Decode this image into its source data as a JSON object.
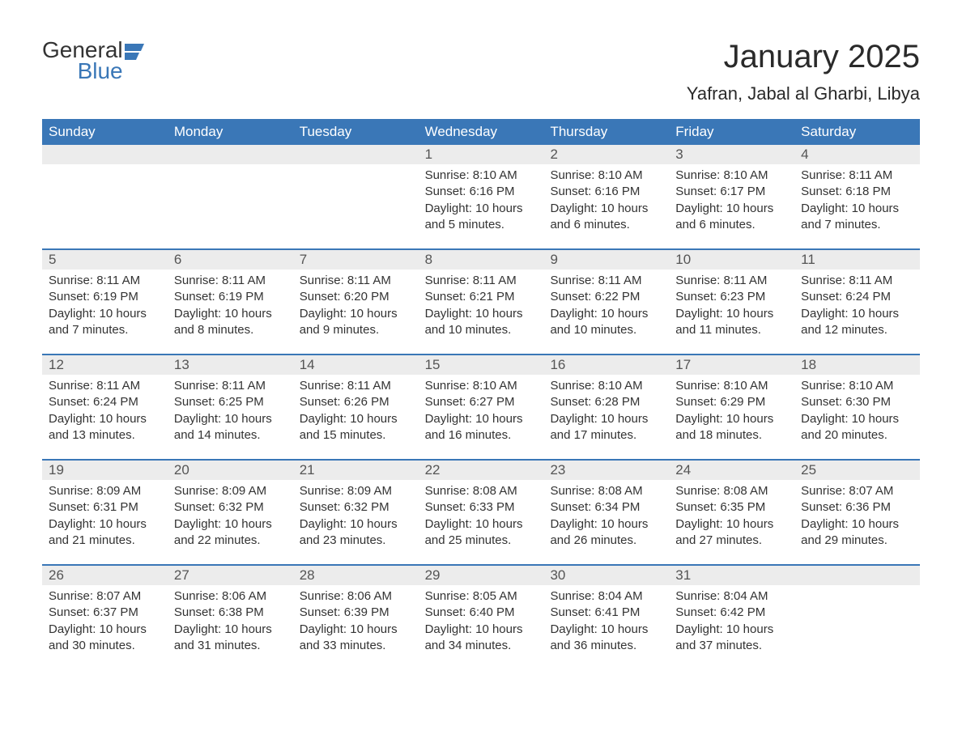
{
  "logo": {
    "word1": "General",
    "word2": "Blue"
  },
  "title": "January 2025",
  "location": "Yafran, Jabal al Gharbi, Libya",
  "colors": {
    "header_bg": "#3a77b7",
    "header_text": "#ffffff",
    "daynum_bg": "#ececec",
    "week_border": "#3a77b7",
    "body_text": "#333333",
    "page_bg": "#ffffff"
  },
  "typography": {
    "title_fontsize": 40,
    "location_fontsize": 22,
    "header_fontsize": 17,
    "body_fontsize": 15,
    "font_family": "Arial"
  },
  "day_headers": [
    "Sunday",
    "Monday",
    "Tuesday",
    "Wednesday",
    "Thursday",
    "Friday",
    "Saturday"
  ],
  "weeks": [
    [
      {
        "day": "",
        "sunrise": "",
        "sunset": "",
        "daylight": ""
      },
      {
        "day": "",
        "sunrise": "",
        "sunset": "",
        "daylight": ""
      },
      {
        "day": "",
        "sunrise": "",
        "sunset": "",
        "daylight": ""
      },
      {
        "day": "1",
        "sunrise": "Sunrise: 8:10 AM",
        "sunset": "Sunset: 6:16 PM",
        "daylight": "Daylight: 10 hours and 5 minutes."
      },
      {
        "day": "2",
        "sunrise": "Sunrise: 8:10 AM",
        "sunset": "Sunset: 6:16 PM",
        "daylight": "Daylight: 10 hours and 6 minutes."
      },
      {
        "day": "3",
        "sunrise": "Sunrise: 8:10 AM",
        "sunset": "Sunset: 6:17 PM",
        "daylight": "Daylight: 10 hours and 6 minutes."
      },
      {
        "day": "4",
        "sunrise": "Sunrise: 8:11 AM",
        "sunset": "Sunset: 6:18 PM",
        "daylight": "Daylight: 10 hours and 7 minutes."
      }
    ],
    [
      {
        "day": "5",
        "sunrise": "Sunrise: 8:11 AM",
        "sunset": "Sunset: 6:19 PM",
        "daylight": "Daylight: 10 hours and 7 minutes."
      },
      {
        "day": "6",
        "sunrise": "Sunrise: 8:11 AM",
        "sunset": "Sunset: 6:19 PM",
        "daylight": "Daylight: 10 hours and 8 minutes."
      },
      {
        "day": "7",
        "sunrise": "Sunrise: 8:11 AM",
        "sunset": "Sunset: 6:20 PM",
        "daylight": "Daylight: 10 hours and 9 minutes."
      },
      {
        "day": "8",
        "sunrise": "Sunrise: 8:11 AM",
        "sunset": "Sunset: 6:21 PM",
        "daylight": "Daylight: 10 hours and 10 minutes."
      },
      {
        "day": "9",
        "sunrise": "Sunrise: 8:11 AM",
        "sunset": "Sunset: 6:22 PM",
        "daylight": "Daylight: 10 hours and 10 minutes."
      },
      {
        "day": "10",
        "sunrise": "Sunrise: 8:11 AM",
        "sunset": "Sunset: 6:23 PM",
        "daylight": "Daylight: 10 hours and 11 minutes."
      },
      {
        "day": "11",
        "sunrise": "Sunrise: 8:11 AM",
        "sunset": "Sunset: 6:24 PM",
        "daylight": "Daylight: 10 hours and 12 minutes."
      }
    ],
    [
      {
        "day": "12",
        "sunrise": "Sunrise: 8:11 AM",
        "sunset": "Sunset: 6:24 PM",
        "daylight": "Daylight: 10 hours and 13 minutes."
      },
      {
        "day": "13",
        "sunrise": "Sunrise: 8:11 AM",
        "sunset": "Sunset: 6:25 PM",
        "daylight": "Daylight: 10 hours and 14 minutes."
      },
      {
        "day": "14",
        "sunrise": "Sunrise: 8:11 AM",
        "sunset": "Sunset: 6:26 PM",
        "daylight": "Daylight: 10 hours and 15 minutes."
      },
      {
        "day": "15",
        "sunrise": "Sunrise: 8:10 AM",
        "sunset": "Sunset: 6:27 PM",
        "daylight": "Daylight: 10 hours and 16 minutes."
      },
      {
        "day": "16",
        "sunrise": "Sunrise: 8:10 AM",
        "sunset": "Sunset: 6:28 PM",
        "daylight": "Daylight: 10 hours and 17 minutes."
      },
      {
        "day": "17",
        "sunrise": "Sunrise: 8:10 AM",
        "sunset": "Sunset: 6:29 PM",
        "daylight": "Daylight: 10 hours and 18 minutes."
      },
      {
        "day": "18",
        "sunrise": "Sunrise: 8:10 AM",
        "sunset": "Sunset: 6:30 PM",
        "daylight": "Daylight: 10 hours and 20 minutes."
      }
    ],
    [
      {
        "day": "19",
        "sunrise": "Sunrise: 8:09 AM",
        "sunset": "Sunset: 6:31 PM",
        "daylight": "Daylight: 10 hours and 21 minutes."
      },
      {
        "day": "20",
        "sunrise": "Sunrise: 8:09 AM",
        "sunset": "Sunset: 6:32 PM",
        "daylight": "Daylight: 10 hours and 22 minutes."
      },
      {
        "day": "21",
        "sunrise": "Sunrise: 8:09 AM",
        "sunset": "Sunset: 6:32 PM",
        "daylight": "Daylight: 10 hours and 23 minutes."
      },
      {
        "day": "22",
        "sunrise": "Sunrise: 8:08 AM",
        "sunset": "Sunset: 6:33 PM",
        "daylight": "Daylight: 10 hours and 25 minutes."
      },
      {
        "day": "23",
        "sunrise": "Sunrise: 8:08 AM",
        "sunset": "Sunset: 6:34 PM",
        "daylight": "Daylight: 10 hours and 26 minutes."
      },
      {
        "day": "24",
        "sunrise": "Sunrise: 8:08 AM",
        "sunset": "Sunset: 6:35 PM",
        "daylight": "Daylight: 10 hours and 27 minutes."
      },
      {
        "day": "25",
        "sunrise": "Sunrise: 8:07 AM",
        "sunset": "Sunset: 6:36 PM",
        "daylight": "Daylight: 10 hours and 29 minutes."
      }
    ],
    [
      {
        "day": "26",
        "sunrise": "Sunrise: 8:07 AM",
        "sunset": "Sunset: 6:37 PM",
        "daylight": "Daylight: 10 hours and 30 minutes."
      },
      {
        "day": "27",
        "sunrise": "Sunrise: 8:06 AM",
        "sunset": "Sunset: 6:38 PM",
        "daylight": "Daylight: 10 hours and 31 minutes."
      },
      {
        "day": "28",
        "sunrise": "Sunrise: 8:06 AM",
        "sunset": "Sunset: 6:39 PM",
        "daylight": "Daylight: 10 hours and 33 minutes."
      },
      {
        "day": "29",
        "sunrise": "Sunrise: 8:05 AM",
        "sunset": "Sunset: 6:40 PM",
        "daylight": "Daylight: 10 hours and 34 minutes."
      },
      {
        "day": "30",
        "sunrise": "Sunrise: 8:04 AM",
        "sunset": "Sunset: 6:41 PM",
        "daylight": "Daylight: 10 hours and 36 minutes."
      },
      {
        "day": "31",
        "sunrise": "Sunrise: 8:04 AM",
        "sunset": "Sunset: 6:42 PM",
        "daylight": "Daylight: 10 hours and 37 minutes."
      },
      {
        "day": "",
        "sunrise": "",
        "sunset": "",
        "daylight": ""
      }
    ]
  ]
}
